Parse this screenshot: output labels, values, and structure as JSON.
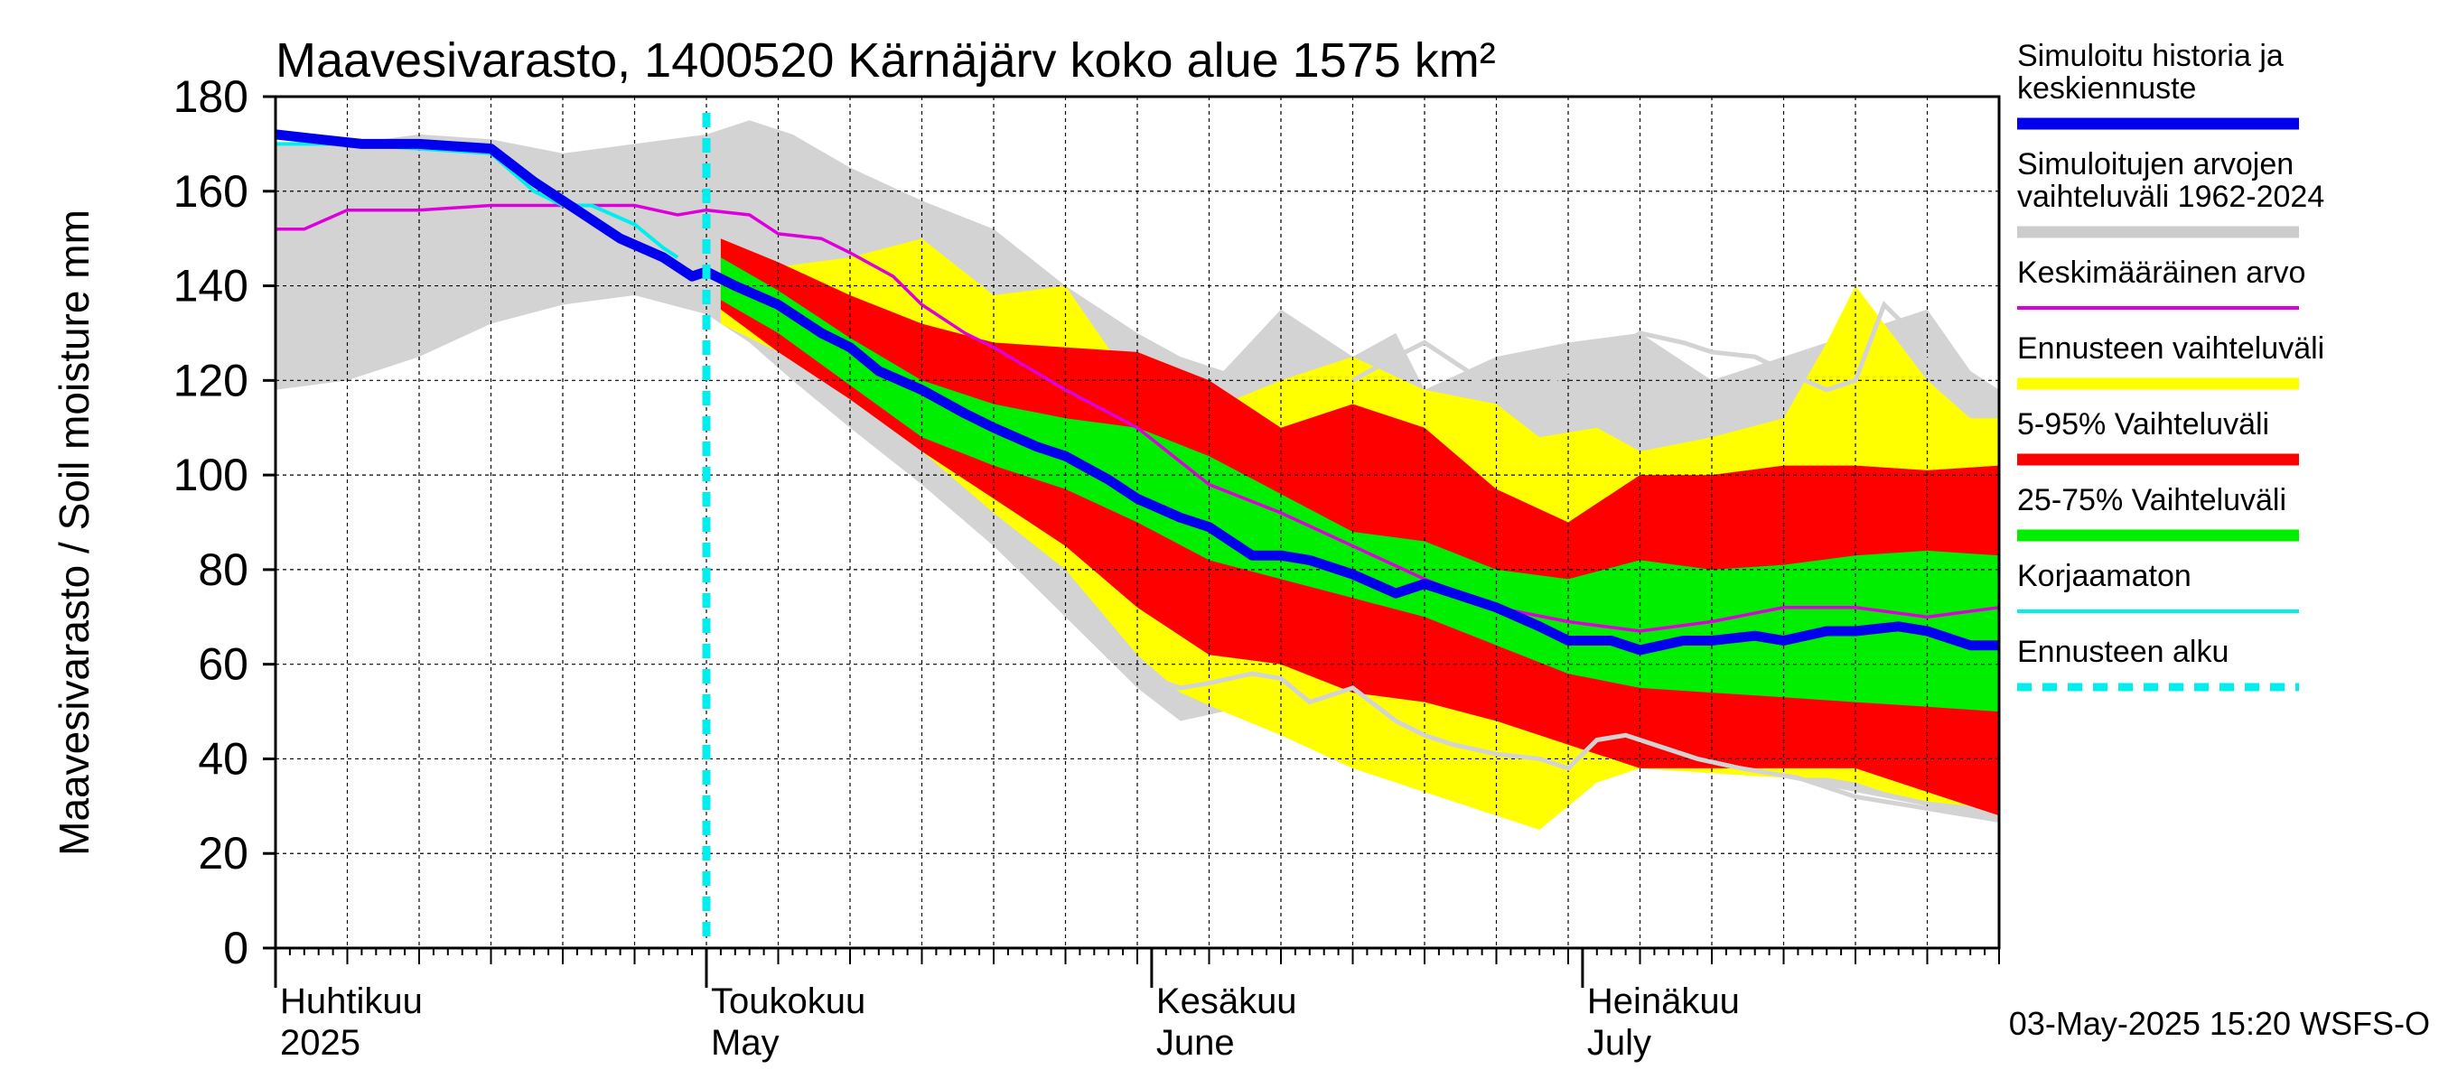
{
  "chart_data": {
    "type": "area",
    "title": "Maavesivarasto, 1400520 Kärnäjärv koko alue 1575 km²",
    "ylabel": "Maavesivarasto / Soil moisture   mm",
    "ylim": [
      0,
      180
    ],
    "yticks": [
      0,
      20,
      40,
      60,
      80,
      100,
      120,
      140,
      160,
      180
    ],
    "x_start_day": 0,
    "x_end_day": 120,
    "forecast_start_day": 30,
    "month_labels": [
      {
        "day": 0,
        "fi": "Huhtikuu",
        "en": "2025"
      },
      {
        "day": 30,
        "fi": "Toukokuu",
        "en": "May"
      },
      {
        "day": 61,
        "fi": "Kesäkuu",
        "en": "June"
      },
      {
        "day": 91,
        "fi": "Heinäkuu",
        "en": "July"
      }
    ],
    "footer": "03-May-2025 15:20 WSFS-O",
    "legend": [
      {
        "label": "Simuloitu historia ja\nkeskiennuste",
        "color": "#0000ee",
        "style": "thick"
      },
      {
        "label": "Simuloitujen arvojen\nvaihteluväli 1962-2024",
        "color": "#cccccc",
        "style": "thick"
      },
      {
        "label": "Keskimääräinen arvo",
        "color": "#dd00dd",
        "style": "thin"
      },
      {
        "label": "Ennusteen vaihteluväli",
        "color": "#ffff00",
        "style": "thick"
      },
      {
        "label": "5-95% Vaihteluväli",
        "color": "#ff0000",
        "style": "thick"
      },
      {
        "label": "25-75% Vaihteluväli",
        "color": "#00ee00",
        "style": "thick"
      },
      {
        "label": "Korjaamaton",
        "color": "#00eeee",
        "style": "thin"
      },
      {
        "label": "Ennusteen alku",
        "color": "#00eeee",
        "style": "dashed"
      }
    ],
    "series": {
      "historical_range": {
        "name": "Simuloitujen arvojen vaihteluväli 1962-2024",
        "x": [
          0,
          5,
          10,
          15,
          20,
          25,
          30,
          33,
          36,
          40,
          45,
          50,
          55,
          60,
          63,
          66,
          70,
          75,
          78,
          80,
          85,
          90,
          95,
          100,
          105,
          110,
          115,
          118,
          120
        ],
        "upper": [
          170,
          170,
          172,
          171,
          168,
          170,
          172,
          175,
          172,
          165,
          158,
          152,
          140,
          130,
          125,
          122,
          135,
          125,
          130,
          118,
          125,
          128,
          130,
          120,
          125,
          130,
          135,
          122,
          118
        ],
        "lower": [
          118,
          120,
          125,
          132,
          136,
          138,
          134,
          128,
          120,
          110,
          98,
          85,
          70,
          55,
          48,
          50,
          46,
          45,
          42,
          40,
          40,
          39,
          38,
          37,
          36,
          33,
          30,
          28,
          27
        ]
      },
      "forecast_range": {
        "name": "Ennusteen vaihteluväli",
        "x": [
          31,
          35,
          40,
          45,
          50,
          55,
          60,
          63,
          66,
          70,
          75,
          80,
          85,
          88,
          92,
          95,
          100,
          105,
          108,
          110,
          112,
          115,
          118,
          120
        ],
        "upper": [
          148,
          144,
          146,
          150,
          138,
          140,
          118,
          114,
          115,
          120,
          125,
          118,
          115,
          108,
          110,
          105,
          108,
          112,
          128,
          140,
          132,
          120,
          112,
          112
        ],
        "lower": [
          132,
          126,
          118,
          105,
          92,
          80,
          62,
          54,
          50,
          45,
          38,
          33,
          28,
          25,
          35,
          38,
          37,
          36,
          36,
          35,
          33,
          31,
          30,
          29
        ]
      },
      "p5_95": {
        "name": "5-95% Vaihteluväli",
        "x": [
          31,
          35,
          40,
          45,
          50,
          55,
          60,
          65,
          70,
          75,
          80,
          85,
          90,
          95,
          100,
          105,
          110,
          115,
          120
        ],
        "upper": [
          150,
          145,
          138,
          132,
          128,
          127,
          126,
          120,
          110,
          115,
          110,
          97,
          90,
          100,
          100,
          102,
          102,
          101,
          102
        ],
        "lower": [
          135,
          126,
          116,
          105,
          95,
          85,
          72,
          62,
          60,
          54,
          52,
          48,
          43,
          38,
          38,
          38,
          38,
          33,
          28
        ]
      },
      "p25_75": {
        "name": "25-75% Vaihteluväli",
        "x": [
          31,
          35,
          40,
          45,
          50,
          55,
          60,
          65,
          70,
          75,
          80,
          85,
          90,
          95,
          100,
          105,
          110,
          115,
          120
        ],
        "upper": [
          146,
          139,
          129,
          120,
          115,
          112,
          110,
          104,
          96,
          88,
          86,
          80,
          78,
          82,
          80,
          81,
          83,
          84,
          83
        ],
        "lower": [
          137,
          130,
          119,
          108,
          102,
          97,
          90,
          82,
          78,
          74,
          70,
          64,
          58,
          55,
          54,
          53,
          52,
          51,
          50
        ]
      },
      "mean": {
        "name": "Keskimääräinen arvo",
        "x": [
          0,
          2,
          5,
          10,
          15,
          18,
          20,
          25,
          28,
          30,
          33,
          35,
          38,
          40,
          43,
          45,
          48,
          50,
          55,
          60,
          65,
          70,
          75,
          80,
          85,
          90,
          95,
          100,
          105,
          110,
          115,
          120
        ],
        "y": [
          152,
          152,
          156,
          156,
          157,
          157,
          157,
          157,
          155,
          156,
          155,
          151,
          150,
          147,
          142,
          136,
          130,
          127,
          118,
          110,
          98,
          92,
          85,
          78,
          72,
          69,
          67,
          69,
          72,
          72,
          70,
          72
        ]
      },
      "median": {
        "name": "Simuloitu historia ja keskiennuste",
        "x": [
          0,
          3,
          6,
          10,
          15,
          18,
          21,
          24,
          27,
          29,
          30,
          32,
          35,
          38,
          40,
          42,
          45,
          48,
          50,
          53,
          55,
          58,
          60,
          63,
          65,
          68,
          70,
          72,
          75,
          78,
          80,
          83,
          85,
          88,
          90,
          93,
          95,
          98,
          100,
          103,
          105,
          108,
          110,
          113,
          115,
          118,
          120
        ],
        "y": [
          172,
          171,
          170,
          170,
          169,
          162,
          156,
          150,
          146,
          142,
          143,
          140,
          136,
          130,
          127,
          122,
          118,
          113,
          110,
          106,
          104,
          99,
          95,
          91,
          89,
          83,
          83,
          82,
          79,
          75,
          77,
          74,
          72,
          68,
          65,
          65,
          63,
          65,
          65,
          66,
          65,
          67,
          67,
          68,
          67,
          64,
          64
        ]
      },
      "uncorrected": {
        "name": "Korjaamaton",
        "x": [
          0,
          5,
          10,
          15,
          18,
          20,
          22,
          25,
          27,
          28
        ],
        "y": [
          170,
          170,
          169,
          168,
          160,
          157,
          157,
          153,
          148,
          146
        ]
      },
      "history_lines": [
        {
          "x": [
            60,
            63,
            65,
            68,
            70,
            72,
            75,
            78,
            80,
            82,
            85,
            88,
            90,
            92,
            94,
            96,
            99,
            102,
            104,
            106,
            108,
            110,
            112,
            114,
            116,
            118,
            120
          ],
          "y": [
            58,
            55,
            56,
            58,
            57,
            52,
            55,
            48,
            45,
            43,
            41,
            40,
            38,
            44,
            45,
            43,
            40,
            38,
            37,
            36,
            34,
            32,
            31,
            30,
            29,
            28,
            27
          ]
        },
        {
          "x": [
            75,
            78,
            80,
            83,
            85,
            88,
            90,
            93,
            95,
            98,
            100,
            103,
            105,
            108,
            110,
            112,
            113,
            115,
            118,
            120
          ],
          "y": [
            120,
            125,
            128,
            122,
            116,
            118,
            122,
            126,
            130,
            128,
            126,
            125,
            122,
            118,
            120,
            136,
            133,
            124,
            115,
            116
          ]
        }
      ]
    }
  }
}
